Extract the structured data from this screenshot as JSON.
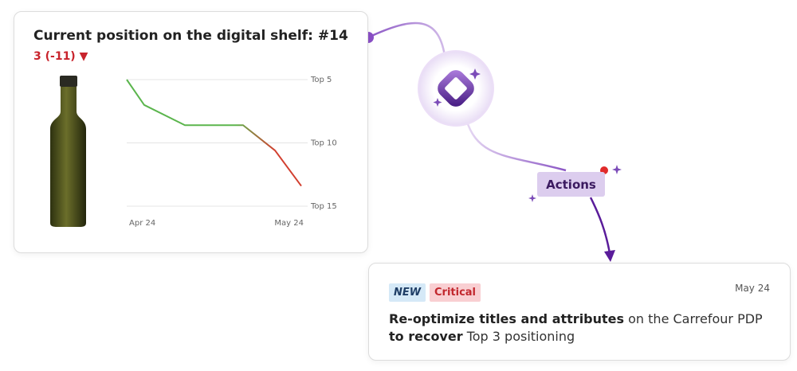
{
  "card": {
    "title": "Current position on the digital shelf: #14",
    "change": "3 (-11) ▼"
  },
  "chart_data": {
    "type": "line",
    "x": [
      0,
      3,
      10,
      20,
      25.5,
      30
    ],
    "values": [
      5,
      7,
      8.6,
      8.6,
      10.6,
      13.4
    ],
    "xlim": [
      0,
      30
    ],
    "xticks": [
      {
        "value": 0,
        "label": "Apr 24"
      },
      {
        "value": 30,
        "label": "May 24"
      }
    ],
    "ylim": [
      5,
      15
    ],
    "y_inverted": true,
    "yticks": [
      {
        "value": 5,
        "label": "Top 5"
      },
      {
        "value": 10,
        "label": "Top 10"
      },
      {
        "value": 15,
        "label": "Top 15"
      }
    ],
    "grid": true,
    "colors": [
      "#5bb54d",
      "#d23f2f"
    ]
  },
  "actions_label": "Actions",
  "recommendation": {
    "badges": [
      "NEW",
      "Critical"
    ],
    "date": "May 24",
    "text": [
      "Re-optimize titles and attributes",
      "on the Carrefour PDP",
      "to recover",
      "Top 3 positioning"
    ]
  }
}
